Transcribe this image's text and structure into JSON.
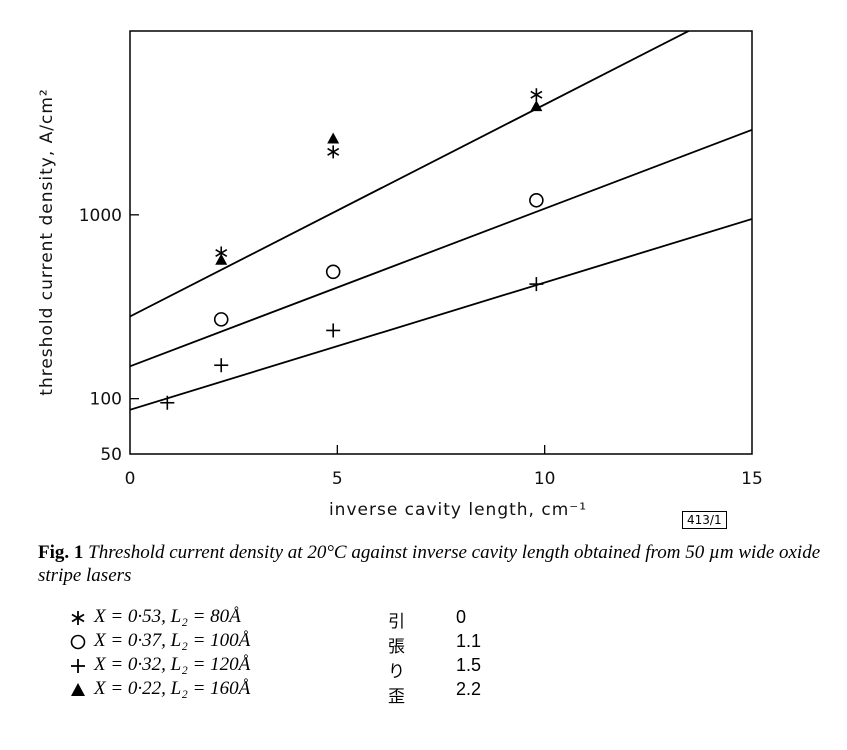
{
  "chart_data": {
    "type": "scatter",
    "ylabel": "threshold current density, A/cm²",
    "xlabel": "inverse cavity length, cm⁻¹",
    "xlim": [
      0,
      15
    ],
    "ylim": [
      50,
      10000
    ],
    "yscale": "log",
    "x_ticks": [
      0,
      5,
      10,
      15
    ],
    "x_tick_labels": [
      "0",
      "5",
      "10",
      "15"
    ],
    "y_ticks": [
      50,
      100,
      1000
    ],
    "y_tick_labels": [
      "50",
      "100",
      "1000"
    ],
    "grid": false,
    "series": [
      {
        "marker": "asterisk",
        "points": [
          [
            2.2,
            620
          ],
          [
            4.9,
            2200
          ],
          [
            9.8,
            4500
          ]
        ],
        "fit": [
          [
            0,
            280
          ],
          [
            15,
            15000
          ]
        ]
      },
      {
        "marker": "triangle",
        "points": [
          [
            2.2,
            570
          ],
          [
            4.9,
            2600
          ],
          [
            9.8,
            3900
          ]
        ],
        "fit": null
      },
      {
        "marker": "circle",
        "points": [
          [
            2.2,
            270
          ],
          [
            4.9,
            490
          ],
          [
            9.8,
            1200
          ]
        ],
        "fit": [
          [
            0,
            150
          ],
          [
            15,
            2900
          ]
        ]
      },
      {
        "marker": "plus",
        "points": [
          [
            0.9,
            95
          ],
          [
            2.2,
            152
          ],
          [
            4.9,
            235
          ],
          [
            9.8,
            420
          ]
        ],
        "fit": [
          [
            0,
            87
          ],
          [
            15,
            950
          ]
        ]
      }
    ],
    "ref_label": "413/1"
  },
  "caption": {
    "fig": "Fig. 1",
    "text": "Threshold current density at 20°C against inverse cavity length obtained from 50 µm wide oxide stripe lasers"
  },
  "legend": [
    {
      "marker": "asterisk",
      "symbol": "∗",
      "eq": "X = 0·53, L₂ = 80Å",
      "jp": "引張り歪",
      "strain": "0"
    },
    {
      "marker": "circle",
      "symbol": "○",
      "eq": "X = 0·37, L₂ = 100Å",
      "jp": "",
      "strain": "1.1"
    },
    {
      "marker": "plus",
      "symbol": "+",
      "eq": "X = 0·32, L₂ = 120Å",
      "jp": "",
      "strain": "1.5"
    },
    {
      "marker": "triangle",
      "symbol": "▲",
      "eq": "X = 0·22, L₂ = 160Å",
      "jp": "",
      "strain": "2.2"
    }
  ]
}
